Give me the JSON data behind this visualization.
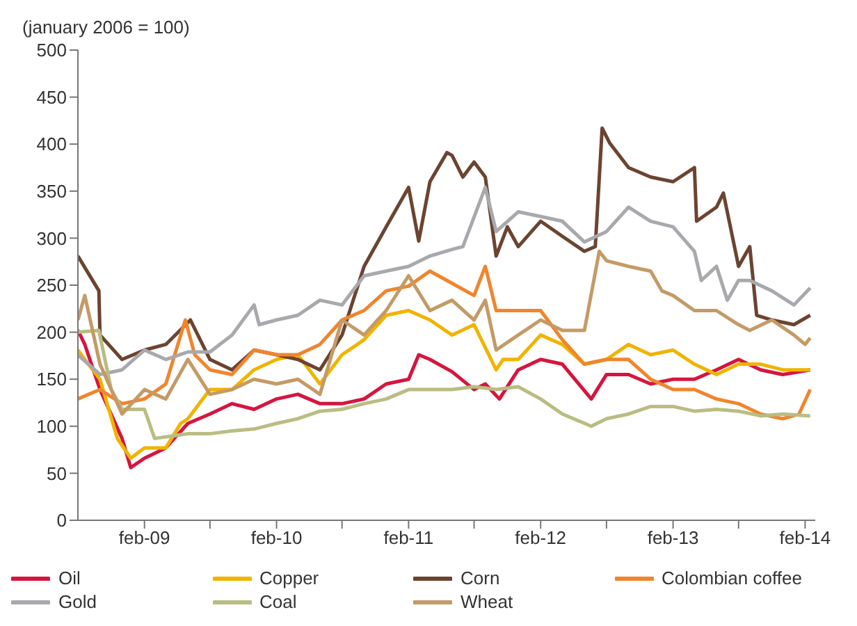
{
  "chart_data": {
    "type": "line",
    "ylabel": "(january  2006 = 100)",
    "ylim": [
      0,
      500
    ],
    "yticks": [
      0,
      50,
      100,
      150,
      200,
      250,
      300,
      350,
      400,
      450,
      500
    ],
    "xlim": [
      "2008-08-01",
      "2014-03-01"
    ],
    "xticks": [
      {
        "value": "2009-02-01",
        "label": "feb-09"
      },
      {
        "value": "2009-08-01",
        "label": null
      },
      {
        "value": "2010-02-01",
        "label": "feb-10"
      },
      {
        "value": "2010-08-01",
        "label": null
      },
      {
        "value": "2011-02-01",
        "label": "feb-11"
      },
      {
        "value": "2011-08-01",
        "label": null
      },
      {
        "value": "2012-02-01",
        "label": "feb-12"
      },
      {
        "value": "2012-08-01",
        "label": null
      },
      {
        "value": "2013-02-01",
        "label": "feb-13"
      },
      {
        "value": "2013-08-01",
        "label": null
      },
      {
        "value": "2014-02-01",
        "label": "feb-14"
      }
    ],
    "legend": "bottom",
    "marker": "none",
    "line_style": "solid",
    "series": [
      {
        "name": "Oil",
        "color": "#d6153f",
        "x": [
          "2008-08-01",
          "2008-08-20",
          "2008-10-01",
          "2008-12-01",
          "2008-12-25",
          "2009-02-01",
          "2009-04-01",
          "2009-06-01",
          "2009-08-01",
          "2009-10-01",
          "2009-12-01",
          "2010-02-01",
          "2010-04-01",
          "2010-06-01",
          "2010-08-01",
          "2010-10-01",
          "2010-12-01",
          "2011-02-01",
          "2011-03-01",
          "2011-04-01",
          "2011-06-01",
          "2011-08-01",
          "2011-09-01",
          "2011-10-10",
          "2011-12-01",
          "2012-02-01",
          "2012-04-01",
          "2012-06-20",
          "2012-08-01",
          "2012-10-01",
          "2012-12-01",
          "2013-02-01",
          "2013-04-01",
          "2013-06-01",
          "2013-08-01",
          "2013-10-01",
          "2013-12-01",
          "2014-02-15"
        ],
        "values": [
          202,
          187,
          139,
          87,
          56,
          66,
          77,
          103,
          113,
          124,
          118,
          129,
          134,
          124,
          124,
          129,
          145,
          150,
          176,
          171,
          158,
          139,
          145,
          129,
          160,
          171,
          166,
          129,
          155,
          155,
          145,
          150,
          150,
          160,
          171,
          160,
          155,
          160
        ]
      },
      {
        "name": "Copper",
        "color": "#f0b400",
        "x": [
          "2008-08-01",
          "2008-08-20",
          "2008-10-01",
          "2008-11-18",
          "2008-12-25",
          "2009-02-01",
          "2009-04-01",
          "2009-05-12",
          "2009-06-01",
          "2009-08-01",
          "2009-10-01",
          "2009-12-01",
          "2010-02-01",
          "2010-04-01",
          "2010-06-01",
          "2010-08-01",
          "2010-10-01",
          "2010-12-01",
          "2011-02-01",
          "2011-04-01",
          "2011-06-01",
          "2011-08-01",
          "2011-10-01",
          "2011-10-20",
          "2011-12-01",
          "2012-02-01",
          "2012-04-01",
          "2012-06-01",
          "2012-08-01",
          "2012-10-01",
          "2012-12-01",
          "2013-02-01",
          "2013-04-01",
          "2013-06-01",
          "2013-08-01",
          "2013-10-01",
          "2013-12-01",
          "2014-02-15"
        ],
        "values": [
          181,
          171,
          150,
          87,
          66,
          77,
          77,
          103,
          108,
          139,
          139,
          160,
          171,
          176,
          145,
          176,
          192,
          218,
          223,
          213,
          197,
          208,
          160,
          171,
          171,
          197,
          187,
          166,
          171,
          187,
          176,
          181,
          166,
          155,
          166,
          166,
          160,
          160
        ]
      },
      {
        "name": "Corn",
        "color": "#6b4431",
        "x": [
          "2008-08-01",
          "2008-09-28",
          "2008-10-01",
          "2008-12-01",
          "2009-02-01",
          "2009-04-01",
          "2009-06-08",
          "2009-08-01",
          "2009-10-01",
          "2009-12-01",
          "2010-02-01",
          "2010-04-01",
          "2010-06-01",
          "2010-08-01",
          "2010-10-01",
          "2010-12-01",
          "2011-02-01",
          "2011-03-01",
          "2011-04-01",
          "2011-05-18",
          "2011-06-01",
          "2011-07-01",
          "2011-08-01",
          "2011-09-01",
          "2011-10-01",
          "2011-11-01",
          "2011-12-01",
          "2012-02-01",
          "2012-04-01",
          "2012-06-01",
          "2012-07-01",
          "2012-07-20",
          "2012-08-10",
          "2012-10-01",
          "2012-12-01",
          "2013-02-01",
          "2013-04-01",
          "2013-04-07",
          "2013-06-01",
          "2013-06-20",
          "2013-08-01",
          "2013-09-01",
          "2013-09-20",
          "2013-11-01",
          "2014-01-01",
          "2014-02-15"
        ],
        "values": [
          281,
          244,
          197,
          171,
          181,
          187,
          213,
          171,
          160,
          181,
          176,
          171,
          160,
          197,
          270,
          312,
          354,
          297,
          360,
          391,
          388,
          365,
          381,
          365,
          281,
          312,
          291,
          318,
          302,
          286,
          291,
          417,
          401,
          375,
          365,
          360,
          375,
          318,
          333,
          348,
          270,
          291,
          218,
          213,
          208,
          218
        ]
      },
      {
        "name": "Colombian coffee",
        "color": "#f0852d",
        "x": [
          "2008-08-01",
          "2008-10-01",
          "2008-12-01",
          "2009-02-01",
          "2009-04-01",
          "2009-05-25",
          "2009-06-20",
          "2009-08-01",
          "2009-10-01",
          "2009-12-01",
          "2010-02-01",
          "2010-04-01",
          "2010-06-01",
          "2010-08-01",
          "2010-10-01",
          "2010-12-01",
          "2011-02-01",
          "2011-04-01",
          "2011-06-01",
          "2011-08-01",
          "2011-09-01",
          "2011-10-01",
          "2011-12-01",
          "2012-02-01",
          "2012-04-01",
          "2012-06-01",
          "2012-08-01",
          "2012-10-01",
          "2012-12-01",
          "2013-02-01",
          "2013-04-01",
          "2013-06-01",
          "2013-08-01",
          "2013-10-01",
          "2013-12-01",
          "2014-01-15",
          "2014-02-15"
        ],
        "values": [
          129,
          139,
          124,
          129,
          145,
          213,
          176,
          160,
          155,
          181,
          176,
          176,
          187,
          213,
          223,
          244,
          249,
          265,
          252,
          239,
          270,
          223,
          223,
          223,
          192,
          166,
          171,
          171,
          150,
          139,
          139,
          129,
          124,
          113,
          108,
          113,
          139
        ]
      },
      {
        "name": "Gold",
        "color": "#a8a9ad",
        "x": [
          "2008-08-01",
          "2008-10-01",
          "2008-12-01",
          "2009-02-01",
          "2009-04-01",
          "2009-06-01",
          "2009-08-01",
          "2009-10-01",
          "2009-12-01",
          "2009-12-15",
          "2010-02-01",
          "2010-04-01",
          "2010-06-01",
          "2010-08-01",
          "2010-10-01",
          "2010-12-01",
          "2011-02-01",
          "2011-04-01",
          "2011-06-01",
          "2011-07-01",
          "2011-09-01",
          "2011-10-01",
          "2011-12-01",
          "2012-02-01",
          "2012-04-01",
          "2012-06-01",
          "2012-08-01",
          "2012-10-01",
          "2012-12-01",
          "2013-02-01",
          "2013-04-01",
          "2013-04-20",
          "2013-06-01",
          "2013-07-01",
          "2013-08-01",
          "2013-09-01",
          "2013-11-01",
          "2014-01-01",
          "2014-02-15"
        ],
        "values": [
          176,
          155,
          160,
          181,
          171,
          179,
          179,
          197,
          229,
          208,
          213,
          218,
          234,
          229,
          260,
          265,
          270,
          281,
          288,
          291,
          354,
          307,
          328,
          323,
          318,
          296,
          307,
          333,
          318,
          312,
          286,
          255,
          270,
          234,
          255,
          255,
          244,
          229,
          247
        ]
      },
      {
        "name": "Coal",
        "color": "#b9bd82",
        "x": [
          "2008-08-01",
          "2008-09-28",
          "2008-11-01",
          "2008-12-01",
          "2009-02-01",
          "2009-03-01",
          "2009-06-01",
          "2009-08-01",
          "2009-10-01",
          "2009-12-01",
          "2010-02-01",
          "2010-04-01",
          "2010-06-01",
          "2010-08-01",
          "2010-10-01",
          "2010-12-01",
          "2011-02-01",
          "2011-04-01",
          "2011-06-01",
          "2011-08-01",
          "2011-10-01",
          "2011-12-01",
          "2012-02-01",
          "2012-04-01",
          "2012-06-20",
          "2012-08-01",
          "2012-10-01",
          "2012-12-01",
          "2013-02-01",
          "2013-04-01",
          "2013-06-01",
          "2013-08-01",
          "2013-10-01",
          "2013-12-01",
          "2014-02-15"
        ],
        "values": [
          200,
          202,
          139,
          118,
          118,
          87,
          92,
          92,
          95,
          97,
          103,
          108,
          116,
          118,
          124,
          129,
          139,
          139,
          139,
          142,
          139,
          142,
          129,
          113,
          100,
          108,
          113,
          121,
          121,
          116,
          118,
          116,
          111,
          113,
          111
        ]
      },
      {
        "name": "Wheat",
        "color": "#c49a66",
        "x": [
          "2008-08-01",
          "2008-08-20",
          "2008-10-01",
          "2008-12-01",
          "2009-02-01",
          "2009-04-01",
          "2009-06-01",
          "2009-08-01",
          "2009-10-01",
          "2009-12-01",
          "2010-02-01",
          "2010-04-01",
          "2010-06-01",
          "2010-08-01",
          "2010-10-01",
          "2010-12-01",
          "2011-02-01",
          "2011-04-01",
          "2011-06-01",
          "2011-08-01",
          "2011-09-01",
          "2011-10-01",
          "2011-12-01",
          "2012-02-01",
          "2012-04-01",
          "2012-06-01",
          "2012-07-12",
          "2012-08-01",
          "2012-10-01",
          "2012-12-01",
          "2013-01-01",
          "2013-02-01",
          "2013-04-01",
          "2013-06-01",
          "2013-08-01",
          "2013-09-01",
          "2013-11-01",
          "2014-01-01",
          "2014-02-01",
          "2014-02-15"
        ],
        "values": [
          213,
          239,
          166,
          113,
          139,
          129,
          171,
          134,
          139,
          150,
          145,
          150,
          134,
          213,
          197,
          223,
          260,
          223,
          234,
          213,
          234,
          181,
          197,
          213,
          202,
          202,
          286,
          276,
          270,
          265,
          244,
          239,
          223,
          223,
          208,
          202,
          213,
          197,
          187,
          194
        ]
      }
    ]
  }
}
